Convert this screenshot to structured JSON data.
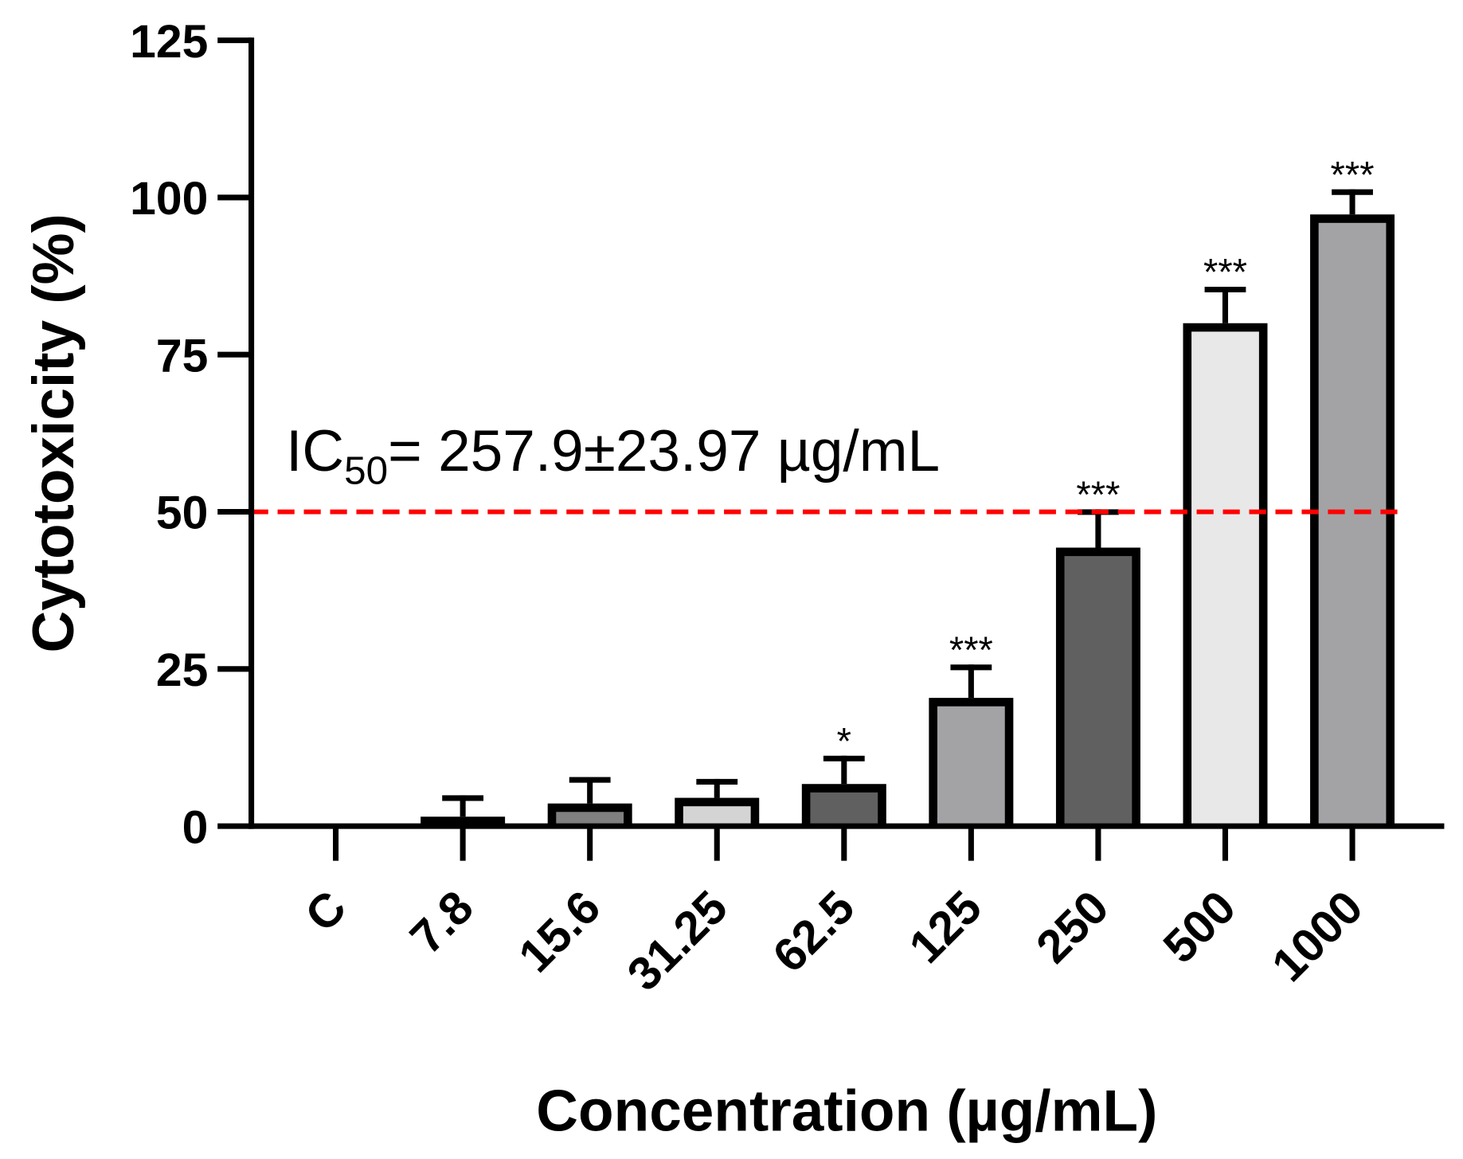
{
  "chart_data": {
    "type": "bar",
    "title": "",
    "xlabel": "Concentration (µg/mL)",
    "ylabel": "Cytotoxicity (%)",
    "ylim": [
      0,
      125
    ],
    "yticks": [
      "0",
      "25",
      "50",
      "75",
      "100",
      "125"
    ],
    "categories": [
      "C",
      "7.8",
      "15.6",
      "31.25",
      "62.5",
      "125",
      "250",
      "500",
      "1000"
    ],
    "values": [
      0,
      1.5,
      3.6,
      4.5,
      6.7,
      20.4,
      44.3,
      80.0,
      97.3
    ],
    "error_upper": [
      0,
      4.9,
      7.8,
      7.5,
      11.2,
      25.7,
      50.4,
      85.8,
      101.3
    ],
    "significance": [
      "",
      "",
      "",
      "",
      "*",
      "***",
      "***",
      "***",
      "***"
    ],
    "bar_colors": [
      "#ffffff",
      "#404040",
      "#808080",
      "#d4d4d4",
      "#606060",
      "#a3a3a6",
      "#606060",
      "#e8e8e8",
      "#a3a3a6"
    ],
    "reference_line": {
      "y": 50,
      "color": "#ff0000",
      "style": "dashed"
    },
    "annotation": {
      "prefix": "IC",
      "subscript": "50",
      "text": "= 257.9±23.97 µg/mL"
    },
    "grid": false
  }
}
